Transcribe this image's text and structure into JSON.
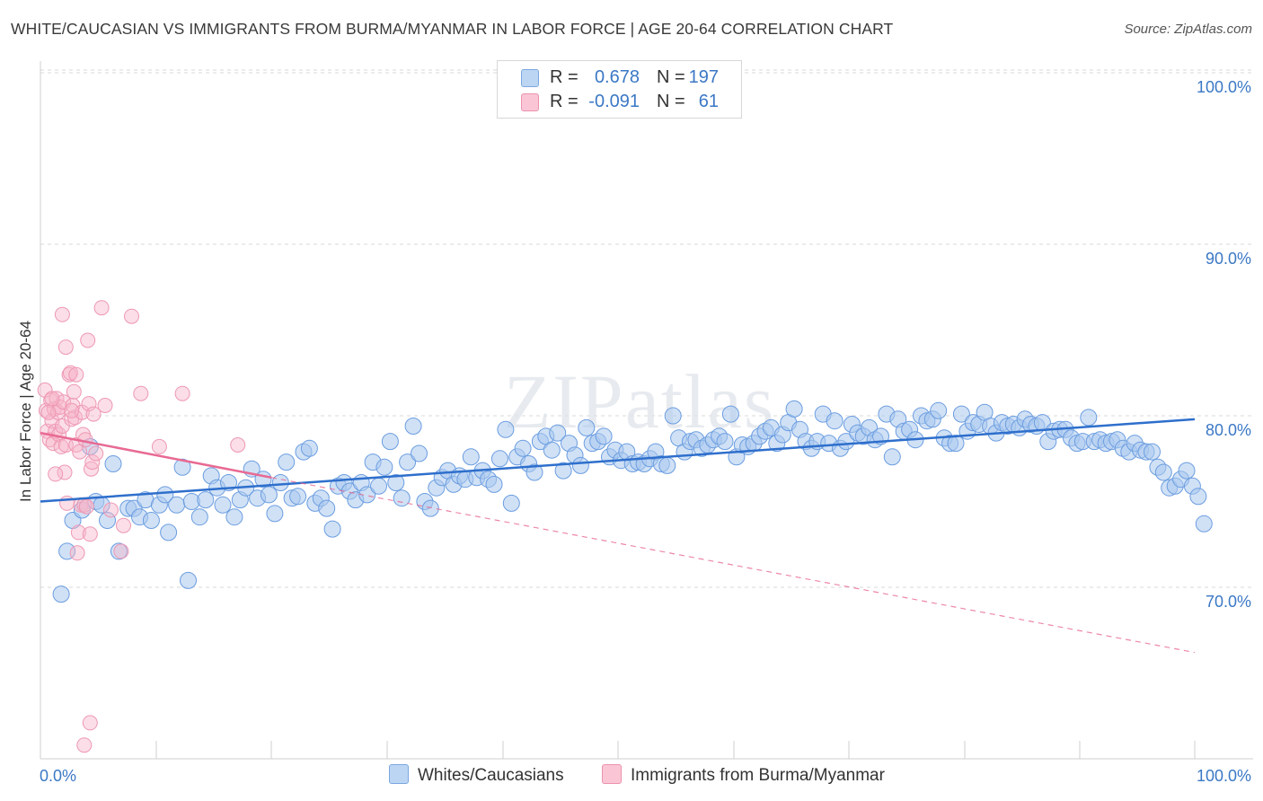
{
  "title": "WHITE/CAUCASIAN VS IMMIGRANTS FROM BURMA/MYANMAR IN LABOR FORCE | AGE 20-64 CORRELATION CHART",
  "source": "Source: ZipAtlas.com",
  "watermark": "ZIPatlas",
  "colors": {
    "blue": "#3b78c5",
    "blue_fill": "#a9c8ef",
    "blue_line": "#2e6fcc",
    "pink_fill": "#f7b6c9",
    "pink_line": "#e86a93",
    "grid": "#d9d9d9"
  },
  "legend_top": {
    "rows": [
      {
        "r_label": "R =",
        "r_value": "0.678",
        "n_label": "N =",
        "n_value": "197",
        "color": "blue"
      },
      {
        "r_label": "R =",
        "r_value": "-0.091",
        "n_label": "N =",
        "n_value": "61",
        "color": "pink"
      }
    ]
  },
  "legend_bottom": {
    "items": [
      {
        "label": "Whites/Caucasians",
        "color": "blue"
      },
      {
        "label": "Immigrants from Burma/Myanmar",
        "color": "pink"
      }
    ]
  },
  "chart_data": {
    "type": "scatter",
    "title": "WHITE/CAUCASIAN VS IMMIGRANTS FROM BURMA/MYANMAR IN LABOR FORCE | AGE 20-64 CORRELATION CHART",
    "xlabel": "",
    "ylabel": "In Labor Force | Age 20-64",
    "xlim": [
      0,
      100
    ],
    "ylim": [
      60,
      102
    ],
    "x_tick_labels": [
      "0.0%",
      "100.0%"
    ],
    "y_ticks": [
      70,
      80,
      90,
      100
    ],
    "y_tick_labels": [
      "70.0%",
      "80.0%",
      "90.0%",
      "100.0%"
    ],
    "grid": true,
    "legend_position": "top-center",
    "series": [
      {
        "name": "Whites/Caucasians",
        "color": "#a9c8ef",
        "trend": {
          "x": [
            0,
            100
          ],
          "y": [
            75.0,
            79.8
          ],
          "style": "solid"
        },
        "points": [
          [
            1.8,
            69.6
          ],
          [
            2.3,
            72.1
          ],
          [
            2.8,
            73.9
          ],
          [
            3.6,
            74.5
          ],
          [
            4.3,
            78.2
          ],
          [
            4.8,
            75.0
          ],
          [
            5.3,
            74.8
          ],
          [
            5.8,
            73.9
          ],
          [
            6.3,
            77.2
          ],
          [
            6.8,
            72.1
          ],
          [
            7.6,
            74.6
          ],
          [
            8.1,
            74.6
          ],
          [
            8.6,
            74.1
          ],
          [
            9.1,
            75.1
          ],
          [
            9.6,
            73.9
          ],
          [
            10.3,
            74.8
          ],
          [
            10.8,
            75.4
          ],
          [
            11.1,
            73.2
          ],
          [
            11.8,
            74.8
          ],
          [
            12.3,
            77.0
          ],
          [
            12.8,
            70.4
          ],
          [
            13.1,
            75.0
          ],
          [
            13.8,
            74.1
          ],
          [
            14.3,
            75.1
          ],
          [
            14.8,
            76.5
          ],
          [
            15.3,
            75.8
          ],
          [
            15.8,
            74.8
          ],
          [
            16.3,
            76.1
          ],
          [
            16.8,
            74.1
          ],
          [
            17.3,
            75.1
          ],
          [
            17.8,
            75.8
          ],
          [
            18.3,
            76.9
          ],
          [
            18.8,
            75.2
          ],
          [
            19.3,
            76.3
          ],
          [
            19.8,
            75.4
          ],
          [
            20.3,
            74.3
          ],
          [
            20.8,
            76.1
          ],
          [
            21.3,
            77.3
          ],
          [
            21.8,
            75.2
          ],
          [
            22.3,
            75.3
          ],
          [
            22.8,
            77.9
          ],
          [
            23.3,
            78.1
          ],
          [
            23.8,
            74.9
          ],
          [
            24.3,
            75.2
          ],
          [
            24.8,
            74.6
          ],
          [
            25.3,
            73.4
          ],
          [
            25.8,
            75.9
          ],
          [
            26.3,
            76.1
          ],
          [
            26.8,
            75.6
          ],
          [
            27.3,
            75.1
          ],
          [
            27.8,
            76.1
          ],
          [
            28.3,
            75.4
          ],
          [
            28.8,
            77.3
          ],
          [
            29.3,
            75.9
          ],
          [
            29.8,
            77.0
          ],
          [
            30.3,
            78.5
          ],
          [
            30.8,
            76.1
          ],
          [
            31.3,
            75.2
          ],
          [
            31.8,
            77.3
          ],
          [
            32.3,
            79.4
          ],
          [
            32.8,
            77.8
          ],
          [
            33.3,
            75.0
          ],
          [
            33.8,
            74.6
          ],
          [
            34.3,
            75.8
          ],
          [
            34.8,
            76.4
          ],
          [
            35.3,
            76.8
          ],
          [
            35.8,
            76.0
          ],
          [
            36.3,
            76.5
          ],
          [
            36.8,
            76.3
          ],
          [
            37.3,
            77.6
          ],
          [
            37.8,
            76.4
          ],
          [
            38.3,
            76.8
          ],
          [
            38.8,
            76.3
          ],
          [
            39.3,
            76.0
          ],
          [
            39.8,
            77.5
          ],
          [
            40.3,
            79.2
          ],
          [
            40.8,
            74.9
          ],
          [
            41.3,
            77.6
          ],
          [
            41.8,
            78.1
          ],
          [
            42.3,
            77.2
          ],
          [
            42.8,
            76.7
          ],
          [
            43.3,
            78.5
          ],
          [
            43.8,
            78.8
          ],
          [
            44.3,
            78.0
          ],
          [
            44.8,
            79.0
          ],
          [
            45.3,
            76.8
          ],
          [
            45.8,
            78.4
          ],
          [
            46.3,
            77.7
          ],
          [
            46.8,
            77.1
          ],
          [
            47.3,
            79.3
          ],
          [
            47.8,
            78.4
          ],
          [
            48.3,
            78.5
          ],
          [
            48.8,
            78.8
          ],
          [
            49.3,
            77.6
          ],
          [
            49.8,
            78.0
          ],
          [
            50.3,
            77.4
          ],
          [
            50.8,
            77.9
          ],
          [
            51.3,
            77.2
          ],
          [
            51.8,
            77.3
          ],
          [
            52.3,
            77.2
          ],
          [
            52.8,
            77.5
          ],
          [
            53.3,
            77.9
          ],
          [
            53.8,
            77.2
          ],
          [
            54.3,
            77.1
          ],
          [
            54.8,
            80.0
          ],
          [
            55.3,
            78.7
          ],
          [
            55.8,
            77.9
          ],
          [
            56.3,
            78.5
          ],
          [
            56.8,
            78.6
          ],
          [
            57.3,
            78.1
          ],
          [
            57.8,
            78.3
          ],
          [
            58.3,
            78.6
          ],
          [
            58.8,
            78.8
          ],
          [
            59.3,
            78.5
          ],
          [
            59.8,
            80.1
          ],
          [
            60.3,
            77.6
          ],
          [
            60.8,
            78.3
          ],
          [
            61.3,
            78.2
          ],
          [
            61.8,
            78.4
          ],
          [
            62.3,
            78.8
          ],
          [
            62.8,
            79.1
          ],
          [
            63.3,
            79.3
          ],
          [
            63.8,
            78.4
          ],
          [
            64.3,
            78.9
          ],
          [
            64.8,
            79.6
          ],
          [
            65.3,
            80.4
          ],
          [
            65.8,
            79.2
          ],
          [
            66.3,
            78.5
          ],
          [
            66.8,
            78.1
          ],
          [
            67.3,
            78.5
          ],
          [
            67.8,
            80.1
          ],
          [
            68.3,
            78.4
          ],
          [
            68.8,
            79.7
          ],
          [
            69.3,
            78.1
          ],
          [
            69.8,
            78.5
          ],
          [
            70.3,
            79.5
          ],
          [
            70.8,
            79.0
          ],
          [
            71.3,
            78.8
          ],
          [
            71.8,
            79.3
          ],
          [
            72.3,
            78.6
          ],
          [
            72.8,
            78.8
          ],
          [
            73.3,
            80.1
          ],
          [
            73.8,
            77.6
          ],
          [
            74.3,
            79.8
          ],
          [
            74.8,
            79.1
          ],
          [
            75.3,
            79.2
          ],
          [
            75.8,
            78.6
          ],
          [
            76.3,
            80.0
          ],
          [
            76.8,
            79.7
          ],
          [
            77.3,
            79.8
          ],
          [
            77.8,
            80.3
          ],
          [
            78.3,
            78.7
          ],
          [
            78.8,
            78.4
          ],
          [
            79.3,
            78.4
          ],
          [
            79.8,
            80.1
          ],
          [
            80.3,
            79.1
          ],
          [
            80.8,
            79.6
          ],
          [
            81.3,
            79.5
          ],
          [
            81.8,
            80.2
          ],
          [
            82.3,
            79.4
          ],
          [
            82.8,
            79.0
          ],
          [
            83.3,
            79.6
          ],
          [
            83.8,
            79.4
          ],
          [
            84.3,
            79.5
          ],
          [
            84.8,
            79.3
          ],
          [
            85.3,
            79.8
          ],
          [
            85.8,
            79.5
          ],
          [
            86.3,
            79.4
          ],
          [
            86.8,
            79.6
          ],
          [
            87.3,
            78.5
          ],
          [
            87.8,
            79.1
          ],
          [
            88.3,
            79.2
          ],
          [
            88.8,
            79.2
          ],
          [
            89.3,
            78.7
          ],
          [
            89.8,
            78.4
          ],
          [
            90.3,
            78.5
          ],
          [
            90.8,
            79.9
          ],
          [
            91.3,
            78.5
          ],
          [
            91.8,
            78.6
          ],
          [
            92.3,
            78.4
          ],
          [
            92.8,
            78.5
          ],
          [
            93.3,
            78.6
          ],
          [
            93.8,
            78.1
          ],
          [
            94.3,
            77.9
          ],
          [
            94.8,
            78.4
          ],
          [
            95.3,
            78.0
          ],
          [
            95.8,
            77.9
          ],
          [
            96.3,
            77.9
          ],
          [
            96.8,
            77.0
          ],
          [
            97.3,
            76.7
          ],
          [
            97.8,
            75.8
          ],
          [
            98.3,
            75.9
          ],
          [
            98.8,
            76.3
          ],
          [
            99.3,
            76.8
          ],
          [
            99.8,
            75.9
          ],
          [
            100.3,
            75.3
          ],
          [
            100.8,
            73.7
          ]
        ]
      },
      {
        "name": "Immigrants from Burma/Myanmar",
        "color": "#f7b6c9",
        "trend": {
          "x": [
            0,
            20
          ],
          "y": [
            79.0,
            76.4
          ],
          "style": "solid",
          "extended": {
            "x": [
              20,
              100
            ],
            "y": [
              76.4,
              66.2
            ],
            "style": "dashed"
          }
        },
        "points": [
          [
            0.4,
            81.5
          ],
          [
            0.5,
            80.3
          ],
          [
            0.6,
            79.1
          ],
          [
            0.8,
            78.6
          ],
          [
            0.9,
            80.9
          ],
          [
            1.0,
            79.7
          ],
          [
            1.1,
            78.4
          ],
          [
            1.2,
            80.4
          ],
          [
            1.3,
            79.1
          ],
          [
            1.4,
            81.0
          ],
          [
            1.5,
            80.2
          ],
          [
            1.6,
            78.9
          ],
          [
            1.7,
            80.5
          ],
          [
            1.8,
            78.2
          ],
          [
            1.9,
            79.4
          ],
          [
            2.0,
            80.8
          ],
          [
            2.1,
            76.7
          ],
          [
            2.2,
            78.3
          ],
          [
            2.3,
            74.9
          ],
          [
            2.5,
            82.4
          ],
          [
            2.6,
            82.5
          ],
          [
            2.7,
            79.8
          ],
          [
            2.8,
            80.6
          ],
          [
            2.9,
            81.4
          ],
          [
            3.0,
            79.9
          ],
          [
            3.1,
            78.3
          ],
          [
            3.2,
            72.0
          ],
          [
            3.3,
            73.2
          ],
          [
            3.4,
            77.9
          ],
          [
            3.5,
            74.8
          ],
          [
            3.6,
            80.2
          ],
          [
            3.7,
            78.9
          ],
          [
            3.8,
            74.8
          ],
          [
            3.9,
            78.6
          ],
          [
            4.0,
            74.7
          ],
          [
            4.1,
            84.4
          ],
          [
            4.2,
            80.7
          ],
          [
            4.3,
            73.1
          ],
          [
            4.4,
            76.9
          ],
          [
            4.5,
            77.3
          ],
          [
            4.6,
            80.1
          ],
          [
            4.8,
            77.8
          ],
          [
            5.3,
            86.3
          ],
          [
            5.6,
            80.6
          ],
          [
            6.1,
            74.5
          ],
          [
            7.0,
            72.1
          ],
          [
            7.2,
            73.6
          ],
          [
            7.9,
            85.8
          ],
          [
            8.7,
            81.3
          ],
          [
            10.3,
            78.2
          ],
          [
            12.3,
            81.3
          ],
          [
            17.1,
            78.3
          ],
          [
            1.9,
            85.9
          ],
          [
            2.2,
            84.0
          ],
          [
            3.1,
            82.4
          ],
          [
            4.3,
            62.1
          ],
          [
            3.8,
            60.8
          ],
          [
            0.7,
            80.2
          ],
          [
            1.0,
            81.0
          ],
          [
            1.3,
            76.6
          ],
          [
            2.7,
            80.3
          ]
        ]
      }
    ]
  }
}
